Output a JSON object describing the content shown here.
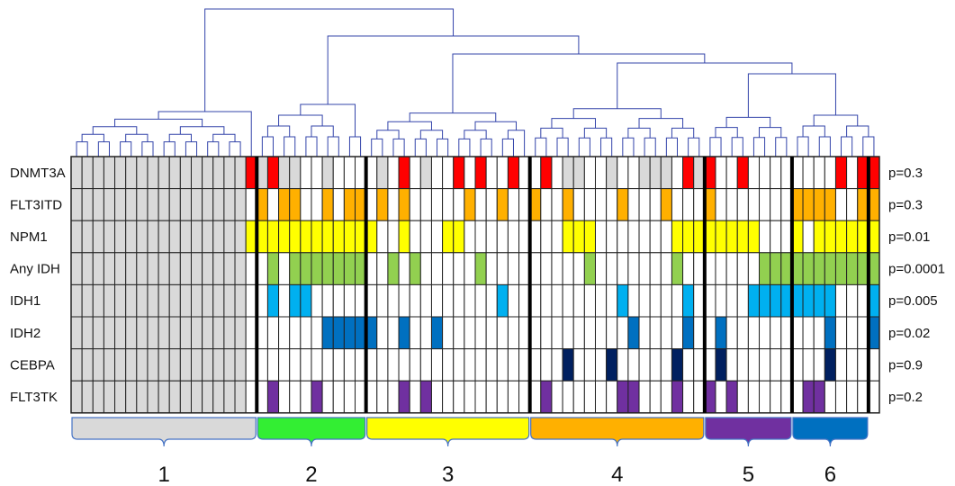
{
  "rows": [
    {
      "label": "DNMT3A",
      "p": "p=0.3",
      "color": "#ff0000"
    },
    {
      "label": "FLT3ITD",
      "p": "p=0.3",
      "color": "#ffb000"
    },
    {
      "label": "NPM1",
      "p": "p=0.01",
      "color": "#ffff00"
    },
    {
      "label": "Any IDH",
      "p": "p=0.0001",
      "color": "#92d050"
    },
    {
      "label": "IDH1",
      "p": "p=0.005",
      "color": "#00b0f0"
    },
    {
      "label": "IDH2",
      "p": "p=0.02",
      "color": "#0070c0"
    },
    {
      "label": "CEBPA",
      "p": "p=0.9",
      "color": "#002060"
    },
    {
      "label": "FLT3TK",
      "p": "p=0.2",
      "color": "#7030a0"
    }
  ],
  "clusters": [
    {
      "label": "1",
      "color": "#d9d9d9",
      "colStart": 0,
      "colEnd": 17
    },
    {
      "label": "2",
      "color": "#33ee33",
      "colStart": 17,
      "colEnd": 27
    },
    {
      "label": "3",
      "color": "#ffff00",
      "colStart": 27,
      "colEnd": 42
    },
    {
      "label": "4",
      "color": "#ffb000",
      "colStart": 42,
      "colEnd": 58
    },
    {
      "label": "5",
      "color": "#7030a0",
      "colStart": 58,
      "colEnd": 66
    },
    {
      "label": "6",
      "color": "#0070c0",
      "colStart": 66,
      "colEnd": 74
    }
  ],
  "grayFill": "#d9d9d9",
  "matrix": {
    "DNMT3A": "GGGGGGGGGGGGGGGGMGMGG..G....G.M.G..M.M..M..M.GG..G..GGG.MGM..M........M.MMG.",
    "FLT3ITD": "GGGGGGGGGGGGGGGG.M.MM..M.MM.M.M.....M..M..M..M....M...M...M.......MMMM..MM..",
    "NPM1": "GGGGGGGGGGGGGGGGMMMMMMMMMMMM..M...MM.........MMM.......MMMMMMMM...M.MMMMMMMM",
    "Any IDH": "GGGGGGGGGGGGGGGG..M.MMMMMMM..M.M.....M.........M.......M.......MMMMMMMMMMMMM",
    "IDH1": "GGGGGGGGGGGGGGGG..M.MM.................M..........M.....M.....MMMMMMMM...MMM",
    "IDH2": "GGGGGGGGGGGGGGGG.......MMMMM..M..M.................M....M..M.........M...MM.",
    "CEBPA": "GGGGGGGGGGGGGGGG.............................M...M.....M...M.........M.....M",
    "FLT3TK": "GGGGGGGGGGGGGGGG..M...M.......M.M..........M......MM...M..M.M......MM......."
  }
}
